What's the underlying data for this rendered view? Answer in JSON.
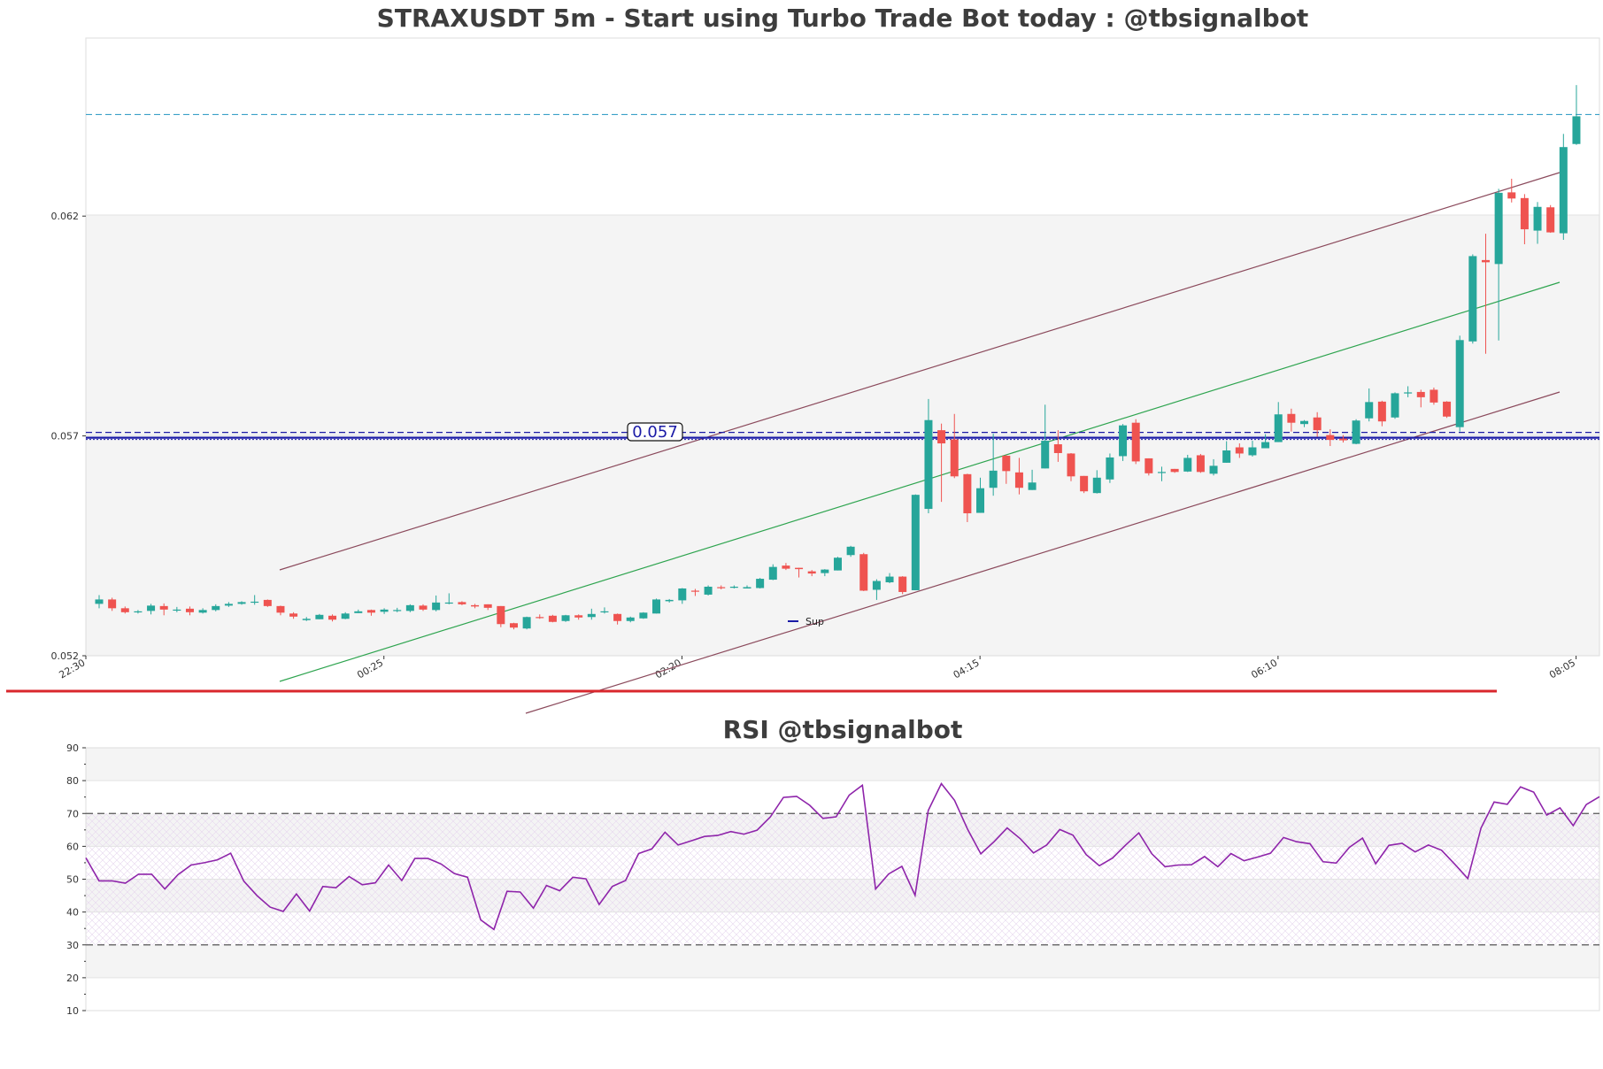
{
  "chart_data": [
    {
      "type": "candlestick",
      "title": "STRAXUSDT 5m - Start using Turbo Trade Bot today : @tbsignalbot",
      "ylim": [
        0.052,
        0.06605
      ],
      "yticks": [
        "0.052",
        "0.057",
        "0.062"
      ],
      "xticks": [
        "22:30",
        "00:25",
        "02:20",
        "04:15",
        "06:10",
        "08:05"
      ],
      "support_level": 0.057,
      "support_label": "0.057",
      "resistance_level": 0.06431,
      "legend": [
        {
          "name": "Sup",
          "color": "#1a1aa6"
        }
      ],
      "colors": {
        "up": "#26a69a",
        "down": "#ef5350",
        "channel": "#8b4a5c",
        "mid": "#2ea44f",
        "support": "#1a1aa6",
        "resistance": "#3aa0c8"
      },
      "candles": [
        [
          0.05318,
          0.05328,
          0.05308,
          0.05338
        ],
        [
          0.05328,
          0.05308,
          0.05302,
          0.05332
        ],
        [
          0.05308,
          0.05299,
          0.05296,
          0.05312
        ],
        [
          0.05299,
          0.05301,
          0.05296,
          0.05304
        ],
        [
          0.05302,
          0.05314,
          0.05294,
          0.05318
        ],
        [
          0.05313,
          0.05305,
          0.05292,
          0.05319
        ],
        [
          0.05304,
          0.05305,
          0.05299,
          0.05311
        ],
        [
          0.05307,
          0.05299,
          0.05292,
          0.05312
        ],
        [
          0.05298,
          0.05304,
          0.05296,
          0.05308
        ],
        [
          0.05304,
          0.05313,
          0.05301,
          0.05317
        ],
        [
          0.05314,
          0.05318,
          0.05311,
          0.05322
        ],
        [
          0.05318,
          0.05322,
          0.05316,
          0.05324
        ],
        [
          0.05321,
          0.05323,
          0.05316,
          0.05338
        ],
        [
          0.05327,
          0.05313,
          0.05311,
          0.05328
        ],
        [
          0.05313,
          0.05298,
          0.05292,
          0.05314
        ],
        [
          0.05296,
          0.05289,
          0.05284,
          0.05299
        ],
        [
          0.05281,
          0.05284,
          0.05279,
          0.05288
        ],
        [
          0.05283,
          0.05293,
          0.05283,
          0.05295
        ],
        [
          0.05291,
          0.05282,
          0.05278,
          0.05294
        ],
        [
          0.05284,
          0.05296,
          0.05283,
          0.05299
        ],
        [
          0.05297,
          0.05301,
          0.05297,
          0.05305
        ],
        [
          0.05304,
          0.05298,
          0.05291,
          0.05305
        ],
        [
          0.053,
          0.05305,
          0.05295,
          0.05308
        ],
        [
          0.05304,
          0.05304,
          0.05299,
          0.05309
        ],
        [
          0.05302,
          0.05315,
          0.05299,
          0.05317
        ],
        [
          0.05314,
          0.05305,
          0.05302,
          0.05317
        ],
        [
          0.05304,
          0.05321,
          0.05301,
          0.05337
        ],
        [
          0.0532,
          0.05321,
          0.05317,
          0.05342
        ],
        [
          0.05322,
          0.05317,
          0.05315,
          0.05324
        ],
        [
          0.05315,
          0.05312,
          0.05308,
          0.05318
        ],
        [
          0.05317,
          0.05309,
          0.05304,
          0.05317
        ],
        [
          0.05313,
          0.05272,
          0.05265,
          0.05313
        ],
        [
          0.05274,
          0.05264,
          0.0526,
          0.05275
        ],
        [
          0.05262,
          0.05288,
          0.0526,
          0.05289
        ],
        [
          0.05288,
          0.05286,
          0.05284,
          0.05294
        ],
        [
          0.05291,
          0.05277,
          0.05276,
          0.05293
        ],
        [
          0.05279,
          0.05292,
          0.05277,
          0.05293
        ],
        [
          0.05292,
          0.05287,
          0.05282,
          0.05294
        ],
        [
          0.05288,
          0.05295,
          0.05282,
          0.05307
        ],
        [
          0.05299,
          0.05301,
          0.05296,
          0.0531
        ],
        [
          0.05295,
          0.05279,
          0.05271,
          0.05296
        ],
        [
          0.05279,
          0.05287,
          0.05276,
          0.05289
        ],
        [
          0.05285,
          0.05298,
          0.05284,
          0.05299
        ],
        [
          0.05296,
          0.05328,
          0.05296,
          0.0533
        ],
        [
          0.05324,
          0.05327,
          0.05321,
          0.05329
        ],
        [
          0.05326,
          0.05353,
          0.05318,
          0.05354
        ],
        [
          0.05348,
          0.05347,
          0.05336,
          0.05352
        ],
        [
          0.05339,
          0.05357,
          0.05337,
          0.0536
        ],
        [
          0.05356,
          0.05355,
          0.05351,
          0.0536
        ],
        [
          0.05355,
          0.05357,
          0.05353,
          0.0536
        ],
        [
          0.05353,
          0.05356,
          0.05353,
          0.0536
        ],
        [
          0.05354,
          0.05375,
          0.05353,
          0.05377
        ],
        [
          0.05373,
          0.05402,
          0.05372,
          0.05408
        ],
        [
          0.05405,
          0.05398,
          0.05395,
          0.05411
        ],
        [
          0.054,
          0.05397,
          0.05378,
          0.054
        ],
        [
          0.05392,
          0.05387,
          0.05381,
          0.05395
        ],
        [
          0.05388,
          0.05396,
          0.05381,
          0.05397
        ],
        [
          0.05394,
          0.05423,
          0.05394,
          0.05425
        ],
        [
          0.05429,
          0.05448,
          0.05425,
          0.0545
        ],
        [
          0.05431,
          0.05348,
          0.05347,
          0.05434
        ],
        [
          0.0535,
          0.0537,
          0.05327,
          0.05374
        ],
        [
          0.05367,
          0.0538,
          0.05365,
          0.05388
        ],
        [
          0.0538,
          0.05345,
          0.0534,
          0.05381
        ],
        [
          0.05349,
          0.05566,
          0.05349,
          0.05567
        ],
        [
          0.05534,
          0.05736,
          0.05524,
          0.05784
        ],
        [
          0.05713,
          0.05683,
          0.0555,
          0.05728
        ],
        [
          0.05692,
          0.05608,
          0.05604,
          0.0575
        ],
        [
          0.05613,
          0.05524,
          0.05504,
          0.05614
        ],
        [
          0.05525,
          0.05581,
          0.05525,
          0.05605
        ],
        [
          0.05582,
          0.05621,
          0.05564,
          0.05705
        ],
        [
          0.05655,
          0.0562,
          0.05591,
          0.05657
        ],
        [
          0.05617,
          0.05582,
          0.05567,
          0.0565
        ],
        [
          0.05577,
          0.05594,
          0.05577,
          0.05623
        ],
        [
          0.05626,
          0.05689,
          0.05626,
          0.05771
        ],
        [
          0.05681,
          0.05661,
          0.05641,
          0.05713
        ],
        [
          0.0566,
          0.05608,
          0.05597,
          0.05661
        ],
        [
          0.05609,
          0.05574,
          0.0557,
          0.05609
        ],
        [
          0.0557,
          0.05605,
          0.05569,
          0.05622
        ],
        [
          0.05601,
          0.05651,
          0.05593,
          0.0566
        ],
        [
          0.05654,
          0.05724,
          0.05643,
          0.05727
        ],
        [
          0.0573,
          0.05642,
          0.05636,
          0.05738
        ],
        [
          0.05649,
          0.05615,
          0.0561,
          0.05649
        ],
        [
          0.05617,
          0.05618,
          0.05597,
          0.0563
        ],
        [
          0.05625,
          0.05618,
          0.05616,
          0.05625
        ],
        [
          0.05619,
          0.0565,
          0.05618,
          0.05657
        ],
        [
          0.05656,
          0.05618,
          0.05616,
          0.05659
        ],
        [
          0.05614,
          0.05632,
          0.0561,
          0.05647
        ],
        [
          0.05639,
          0.05667,
          0.05639,
          0.05688
        ],
        [
          0.05674,
          0.0566,
          0.0565,
          0.05683
        ],
        [
          0.05656,
          0.05674,
          0.05653,
          0.05689
        ],
        [
          0.05672,
          0.05686,
          0.05672,
          0.05704
        ],
        [
          0.05686,
          0.05749,
          0.05686,
          0.05777
        ],
        [
          0.0575,
          0.0573,
          0.0571,
          0.05762
        ],
        [
          0.05727,
          0.05734,
          0.0572,
          0.05736
        ],
        [
          0.05742,
          0.05713,
          0.05698,
          0.05754
        ],
        [
          0.05702,
          0.05691,
          0.05677,
          0.05715
        ],
        [
          0.05694,
          0.0569,
          0.05685,
          0.05702
        ],
        [
          0.05682,
          0.05735,
          0.05681,
          0.05738
        ],
        [
          0.0574,
          0.05777,
          0.05733,
          0.05808
        ],
        [
          0.05778,
          0.05733,
          0.05722,
          0.0578
        ],
        [
          0.05742,
          0.05797,
          0.05739,
          0.05799
        ],
        [
          0.05798,
          0.05799,
          0.05788,
          0.05813
        ],
        [
          0.058,
          0.05788,
          0.05765,
          0.05805
        ],
        [
          0.05805,
          0.05776,
          0.05771,
          0.0581
        ],
        [
          0.05778,
          0.05744,
          0.05741,
          0.05779
        ],
        [
          0.0572,
          0.05918,
          0.0571,
          0.05928
        ],
        [
          0.05915,
          0.06109,
          0.0591,
          0.06113
        ],
        [
          0.061,
          0.06095,
          0.05887,
          0.0616
        ],
        [
          0.06091,
          0.06253,
          0.05917,
          0.06262
        ],
        [
          0.06254,
          0.0624,
          0.06231,
          0.06285
        ],
        [
          0.06241,
          0.0617,
          0.06136,
          0.0625
        ],
        [
          0.06167,
          0.06221,
          0.06137,
          0.06232
        ],
        [
          0.0622,
          0.06163,
          0.06162,
          0.06225
        ],
        [
          0.06161,
          0.06357,
          0.06146,
          0.06387
        ],
        [
          0.06364,
          0.06427,
          0.06362,
          0.06498
        ]
      ]
    },
    {
      "type": "line",
      "title": "RSI @tbsignalbot",
      "ylim": [
        10,
        90
      ],
      "yticks": [
        "10",
        "20",
        "30",
        "40",
        "50",
        "60",
        "70",
        "80",
        "90"
      ],
      "overbought": 70,
      "oversold": 30,
      "series": [
        {
          "color": "#8e24aa",
          "values": [
            56.5,
            49.5,
            49.5,
            48.8,
            51.5,
            51.5,
            47.0,
            51.4,
            54.3,
            55.0,
            55.9,
            57.9,
            49.4,
            45.0,
            41.5,
            40.2,
            45.5,
            40.3,
            47.8,
            47.4,
            50.8,
            48.3,
            48.9,
            54.3,
            49.6,
            56.3,
            56.3,
            54.6,
            51.7,
            50.6,
            37.6,
            34.7,
            46.3,
            46.1,
            41.2,
            48.1,
            46.5,
            50.6,
            50.1,
            42.3,
            47.8,
            49.6,
            57.8,
            59.2,
            64.3,
            60.4,
            61.7,
            63.0,
            63.3,
            64.5,
            63.7,
            64.9,
            68.9,
            74.9,
            75.2,
            72.5,
            68.5,
            69.0,
            75.6,
            78.6,
            47.0,
            51.6,
            53.9,
            45.1,
            70.9,
            79.1,
            74.0,
            65.1,
            57.7,
            61.4,
            65.6,
            62.3,
            58.0,
            60.4,
            65.1,
            63.4,
            57.5,
            54.1,
            56.4,
            60.4,
            64.1,
            57.7,
            53.8,
            54.3,
            54.4,
            56.9,
            53.8,
            57.8,
            55.6,
            56.7,
            57.9,
            62.7,
            61.4,
            60.8,
            55.3,
            54.9,
            59.7,
            62.5,
            54.7,
            60.3,
            60.9,
            58.3,
            60.4,
            58.8,
            54.6,
            50.2,
            65.6,
            73.5,
            72.8,
            78.1,
            76.5,
            69.5,
            71.7,
            66.3,
            72.7,
            75.1
          ]
        }
      ]
    }
  ]
}
